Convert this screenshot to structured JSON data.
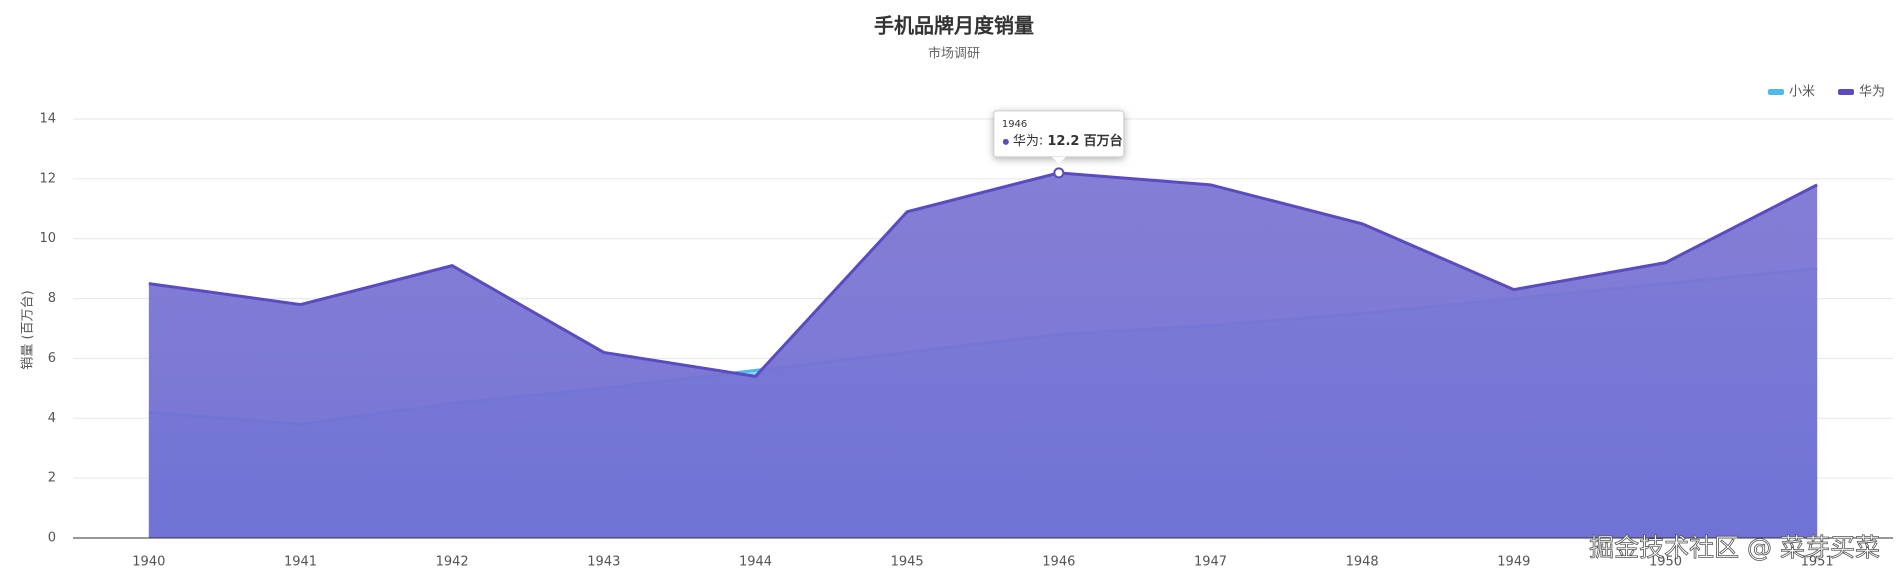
{
  "chart_data": {
    "type": "area",
    "title": "手机品牌月度销量",
    "subtitle": "市场调研",
    "y_label": "销量 (百万台)",
    "categories": [
      "1940",
      "1941",
      "1942",
      "1943",
      "1944",
      "1945",
      "1946",
      "1947",
      "1948",
      "1949",
      "1950",
      "1951"
    ],
    "series": [
      {
        "name": "小米",
        "color": "#4fb9ec",
        "values": [
          4.2,
          3.8,
          4.5,
          5.0,
          5.6,
          6.2,
          6.8,
          7.1,
          7.5,
          8.0,
          8.5,
          9.0
        ]
      },
      {
        "name": "华为",
        "color": "#5a4cc0",
        "values": [
          8.5,
          7.8,
          9.1,
          6.2,
          5.4,
          10.9,
          12.2,
          11.8,
          10.5,
          8.3,
          9.2,
          11.8
        ]
      }
    ],
    "ylim": [
      0,
      14
    ],
    "yticks": [
      0,
      2,
      4,
      6,
      8,
      10,
      12,
      14
    ],
    "grid": true,
    "legend": "top-right",
    "tooltip": {
      "unit": "百万台"
    },
    "watermark": "掘金技术社区 @ 菜芽买菜"
  }
}
